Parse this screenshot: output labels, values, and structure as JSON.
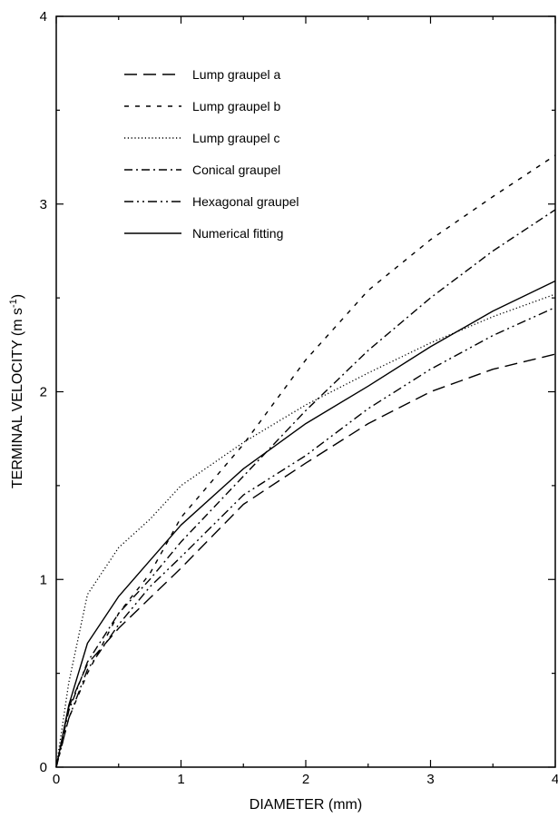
{
  "chart_data": {
    "type": "line",
    "title": "",
    "xlabel": "DIAMETER (mm)",
    "ylabel_main": "TERMINAL VELOCITY (m s",
    "ylabel_sup": "-1",
    "ylabel_end": ")",
    "xlim": [
      0,
      4
    ],
    "ylim": [
      0,
      4
    ],
    "xticks": [
      "0",
      "1",
      "2",
      "3",
      "4"
    ],
    "yticks": [
      "0",
      "1",
      "2",
      "3",
      "4"
    ],
    "grid": false,
    "legend_position": "top-left",
    "series": [
      {
        "name": "Lump graupel a",
        "dash": "long-dash",
        "points": [
          [
            0,
            0
          ],
          [
            0.1,
            0.32
          ],
          [
            0.25,
            0.55
          ],
          [
            0.5,
            0.74
          ],
          [
            0.75,
            0.9
          ],
          [
            1,
            1.06
          ],
          [
            1.5,
            1.4
          ],
          [
            2,
            1.62
          ],
          [
            2.5,
            1.83
          ],
          [
            3,
            2.0
          ],
          [
            3.5,
            2.12
          ],
          [
            4,
            2.2
          ]
        ]
      },
      {
        "name": "Lump graupel b",
        "dash": "short-dash",
        "points": [
          [
            0,
            0
          ],
          [
            0.1,
            0.26
          ],
          [
            0.25,
            0.5
          ],
          [
            0.5,
            0.82
          ],
          [
            0.75,
            1.03
          ],
          [
            1,
            1.33
          ],
          [
            1.5,
            1.72
          ],
          [
            2,
            2.17
          ],
          [
            2.5,
            2.54
          ],
          [
            3,
            2.81
          ],
          [
            3.5,
            3.04
          ],
          [
            4,
            3.26
          ]
        ]
      },
      {
        "name": "Lump graupel c",
        "dash": "dotted",
        "points": [
          [
            0,
            0
          ],
          [
            0.1,
            0.45
          ],
          [
            0.25,
            0.92
          ],
          [
            0.5,
            1.17
          ],
          [
            0.75,
            1.32
          ],
          [
            1,
            1.5
          ],
          [
            1.5,
            1.73
          ],
          [
            2,
            1.93
          ],
          [
            2.5,
            2.1
          ],
          [
            3,
            2.26
          ],
          [
            3.5,
            2.4
          ],
          [
            4,
            2.52
          ]
        ]
      },
      {
        "name": "Conical graupel",
        "dash": "dash-dot",
        "points": [
          [
            0,
            0
          ],
          [
            0.1,
            0.3
          ],
          [
            0.25,
            0.56
          ],
          [
            0.5,
            0.82
          ],
          [
            0.75,
            1.0
          ],
          [
            1,
            1.2
          ],
          [
            1.5,
            1.55
          ],
          [
            2,
            1.9
          ],
          [
            2.5,
            2.22
          ],
          [
            3,
            2.5
          ],
          [
            3.5,
            2.75
          ],
          [
            4,
            2.97
          ]
        ]
      },
      {
        "name": "Hexagonal graupel",
        "dash": "dash-dot-dot",
        "points": [
          [
            0,
            0
          ],
          [
            0.1,
            0.26
          ],
          [
            0.25,
            0.52
          ],
          [
            0.5,
            0.76
          ],
          [
            0.75,
            0.96
          ],
          [
            1,
            1.12
          ],
          [
            1.5,
            1.45
          ],
          [
            2,
            1.66
          ],
          [
            2.5,
            1.91
          ],
          [
            3,
            2.12
          ],
          [
            3.5,
            2.3
          ],
          [
            4,
            2.45
          ]
        ]
      },
      {
        "name": "Numerical fitting",
        "dash": "solid",
        "points": [
          [
            0,
            0
          ],
          [
            0.1,
            0.33
          ],
          [
            0.25,
            0.66
          ],
          [
            0.5,
            0.91
          ],
          [
            0.75,
            1.1
          ],
          [
            1,
            1.29
          ],
          [
            1.5,
            1.59
          ],
          [
            2,
            1.83
          ],
          [
            2.5,
            2.03
          ],
          [
            3,
            2.24
          ],
          [
            3.5,
            2.43
          ],
          [
            4,
            2.59
          ]
        ]
      }
    ]
  }
}
